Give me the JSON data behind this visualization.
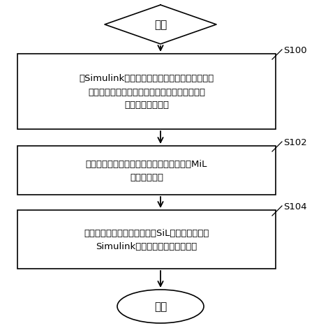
{
  "bg_color": "#ffffff",
  "diamond_label": "开始",
  "oval_label": "结束",
  "box1_line1": "在Simulink下建立电动汽车的电机控制模块的仿",
  "box1_line2": "真环境，对开发设计的用于电机控制模型的控制",
  "box1_line3": "算法进行仿真分析",
  "box2_line1": "对所述电机控制模型进行模型在环仿真测试MiL",
  "box2_line2": "，并生成代码",
  "box3_line1": "对所述代码进行软件在环仿真SiL，从而获得基于",
  "box3_line2": "Simulink的控制算法软件程序代码",
  "label1": "S100",
  "label2": "S102",
  "label3": "S104",
  "text_color": "#000000",
  "box_edge_color": "#000000",
  "box_fill_color": "#ffffff",
  "arrow_color": "#000000",
  "font_size_box": 9.5,
  "font_size_terminal": 11,
  "font_size_label": 9.5,
  "figw": 4.7,
  "figh": 4.81,
  "dpi": 100
}
